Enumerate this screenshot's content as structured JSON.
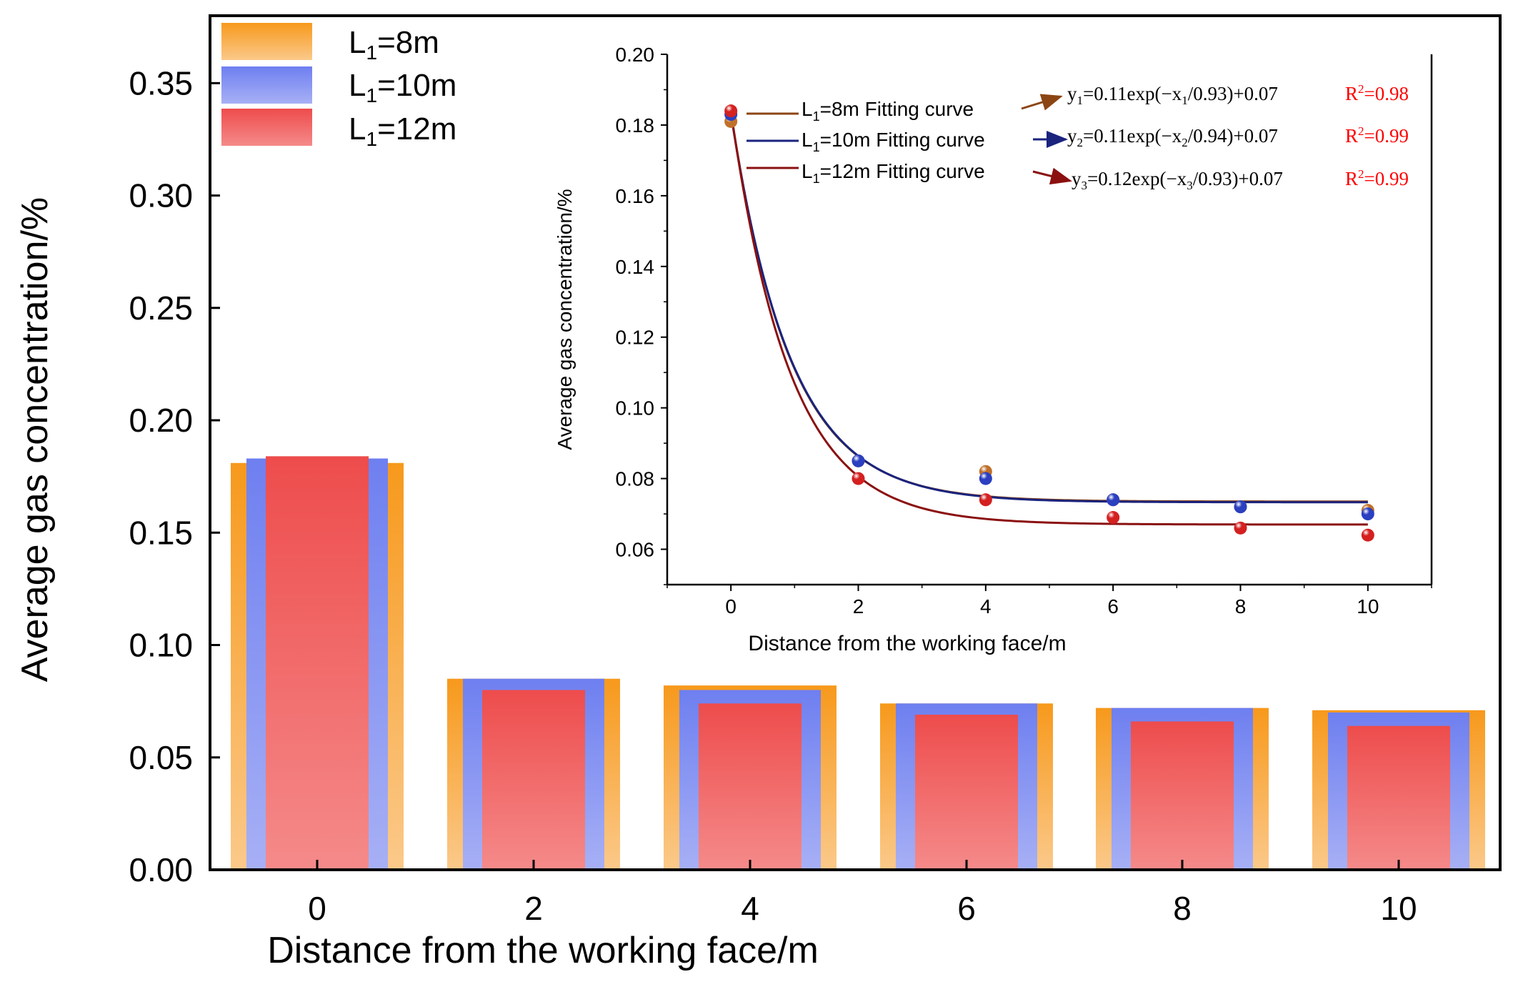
{
  "chart_data": [
    {
      "id": "main",
      "type": "bar",
      "xlabel": "Distance from the working face/m",
      "ylabel": "Average gas concentration/%",
      "categories": [
        "0",
        "2",
        "4",
        "6",
        "8",
        "10"
      ],
      "ylim": [
        0,
        0.38
      ],
      "yticks": [
        "0.00",
        "0.05",
        "0.10",
        "0.15",
        "0.20",
        "0.25",
        "0.30",
        "0.35"
      ],
      "legend_position": "top-left",
      "series": [
        {
          "name": "L1=8m",
          "legend": {
            "base": "L",
            "sub": "1",
            "rest": "=8m"
          },
          "color_top": "#f7991c",
          "color_bottom": "#fbc98a",
          "values": [
            0.181,
            0.085,
            0.082,
            0.074,
            0.072,
            0.071
          ]
        },
        {
          "name": "L1=10m",
          "legend": {
            "base": "L",
            "sub": "1",
            "rest": "=10m"
          },
          "color_top": "#6e7ff0",
          "color_bottom": "#a7b0f5",
          "values": [
            0.183,
            0.085,
            0.08,
            0.074,
            0.072,
            0.07
          ]
        },
        {
          "name": "L1=12m",
          "legend": {
            "base": "L",
            "sub": "1",
            "rest": "=12m"
          },
          "color_top": "#ee4c4c",
          "color_bottom": "#f58a8a",
          "values": [
            0.184,
            0.08,
            0.074,
            0.069,
            0.066,
            0.064
          ]
        }
      ]
    },
    {
      "id": "inset",
      "type": "scatter",
      "xlabel": "Distance from the working face/m",
      "ylabel": "Average gas concentration/%",
      "xlim": [
        -1,
        11
      ],
      "ylim": [
        0.05,
        0.2
      ],
      "xticks": [
        "0",
        "2",
        "4",
        "6",
        "8",
        "10"
      ],
      "yticks": [
        "0.06",
        "0.08",
        "0.10",
        "0.12",
        "0.14",
        "0.16",
        "0.18",
        "0.20"
      ],
      "x": [
        0,
        2,
        4,
        6,
        8,
        10
      ],
      "series": [
        {
          "name": "L1=8m",
          "color": "#c0702a",
          "line_color": "#8b4513",
          "values": [
            0.181,
            0.085,
            0.082,
            0.074,
            0.072,
            0.071
          ],
          "fit": {
            "a": 0.11,
            "t": 0.93,
            "c": 0.0735
          },
          "label": {
            "base": "L",
            "sub": "1",
            "rest": "=8m Fitting curve"
          },
          "equation": {
            "y": "y",
            "ysub": "1",
            "mid": "=0.11exp(−x",
            "xsub": "1",
            "end": "/0.93)+0.07"
          },
          "r2": {
            "text": "R",
            "sup": "2",
            "val": "=0.98"
          }
        },
        {
          "name": "L1=10m",
          "color": "#2b3fc0",
          "line_color": "#1a237e",
          "values": [
            0.183,
            0.085,
            0.08,
            0.074,
            0.072,
            0.07
          ],
          "fit": {
            "a": 0.11,
            "t": 0.94,
            "c": 0.0733
          },
          "label": {
            "base": "L",
            "sub": "1",
            "rest": "=10m Fitting curve"
          },
          "equation": {
            "y": "y",
            "ysub": "2",
            "mid": "=0.11exp(−x",
            "xsub": "2",
            "end": "/0.94)+0.07"
          },
          "r2": {
            "text": "R",
            "sup": "2",
            "val": "=0.99"
          }
        },
        {
          "name": "L1=12m",
          "color": "#d42020",
          "line_color": "#8b1010",
          "values": [
            0.184,
            0.08,
            0.074,
            0.069,
            0.066,
            0.064
          ],
          "fit": {
            "a": 0.117,
            "t": 0.93,
            "c": 0.067
          },
          "label": {
            "base": "L",
            "sub": "1",
            "rest": "=12m Fitting curve"
          },
          "equation": {
            "y": "y",
            "ysub": "3",
            "mid": "=0.12exp(−x",
            "xsub": "3",
            "end": "/0.93)+0.07"
          },
          "r2": {
            "text": "R",
            "sup": "2",
            "val": "=0.99"
          }
        }
      ],
      "r2_color": "#ff0000"
    }
  ]
}
